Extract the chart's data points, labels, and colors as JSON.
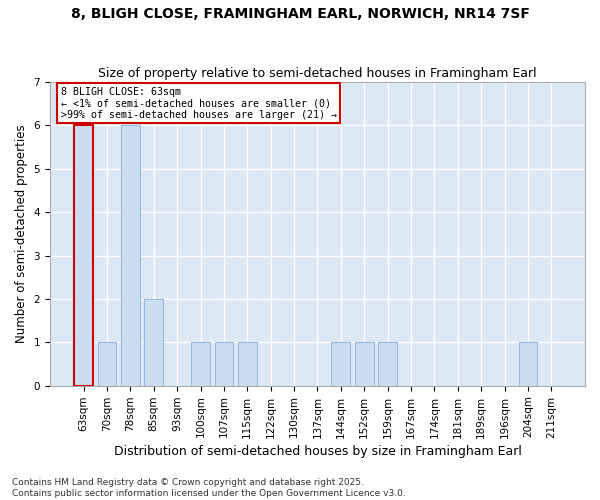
{
  "title": "8, BLIGH CLOSE, FRAMINGHAM EARL, NORWICH, NR14 7SF",
  "subtitle": "Size of property relative to semi-detached houses in Framingham Earl",
  "xlabel": "Distribution of semi-detached houses by size in Framingham Earl",
  "ylabel": "Number of semi-detached properties",
  "categories": [
    "63sqm",
    "70sqm",
    "78sqm",
    "85sqm",
    "93sqm",
    "100sqm",
    "107sqm",
    "115sqm",
    "122sqm",
    "130sqm",
    "137sqm",
    "144sqm",
    "152sqm",
    "159sqm",
    "167sqm",
    "174sqm",
    "181sqm",
    "189sqm",
    "196sqm",
    "204sqm",
    "211sqm"
  ],
  "values": [
    6,
    1,
    6,
    2,
    0,
    1,
    1,
    1,
    0,
    0,
    0,
    1,
    1,
    1,
    0,
    0,
    0,
    0,
    0,
    1,
    0
  ],
  "bar_color": "#ccddef",
  "bar_edge_color": "#99bbdd",
  "highlight_index": 0,
  "highlight_left_edge_color": "#cc0000",
  "annotation_box_text": "8 BLIGH CLOSE: 63sqm\n← <1% of semi-detached houses are smaller (0)\n>99% of semi-detached houses are larger (21) →",
  "annotation_box_color": "#ffffff",
  "annotation_box_edge_color": "#cc0000",
  "footer_text": "Contains HM Land Registry data © Crown copyright and database right 2025.\nContains public sector information licensed under the Open Government Licence v3.0.",
  "ylim": [
    0,
    7
  ],
  "yticks": [
    0,
    1,
    2,
    3,
    4,
    5,
    6,
    7
  ],
  "fig_background_color": "#ffffff",
  "plot_background_color": "#dde8f5",
  "grid_color": "#ffffff",
  "title_fontsize": 10,
  "subtitle_fontsize": 9,
  "xlabel_fontsize": 9,
  "ylabel_fontsize": 8.5,
  "tick_fontsize": 7.5,
  "footer_fontsize": 6.5
}
